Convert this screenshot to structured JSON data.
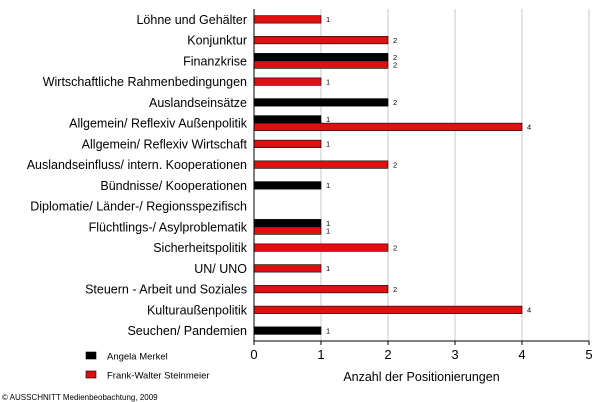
{
  "chart_data": {
    "type": "bar",
    "orientation": "horizontal",
    "categories": [
      "Löhne und Gehälter",
      "Konjunktur",
      "Finanzkrise",
      "Wirtschaftliche Rahmenbedingungen",
      "Auslandseinsätze",
      "Allgemein/ Reflexiv Außenpolitik",
      "Allgemein/ Reflexiv Wirtschaft",
      "Auslandseinfluss/ intern. Kooperationen",
      "Bündnisse/ Kooperationen",
      "Diplomatie/ Länder-/ Regionsspezifisch",
      "Flüchtlings-/ Asylproblematik",
      "Sicherheitspolitik",
      "UN/ UNO",
      "Steuern - Arbeit und Soziales",
      "Kulturaußenpolitik",
      "Seuchen/ Pandemien"
    ],
    "series": [
      {
        "name": "Angela Merkel",
        "color": "#000000",
        "values": [
          null,
          null,
          2,
          null,
          2,
          1,
          null,
          null,
          1,
          null,
          1,
          null,
          null,
          null,
          null,
          1
        ]
      },
      {
        "name": "Frank-Walter Steinmeier",
        "color": "#dd1111",
        "values": [
          1,
          2,
          2,
          1,
          null,
          4,
          1,
          2,
          null,
          null,
          1,
          2,
          1,
          2,
          4,
          null
        ]
      }
    ],
    "xlabel": "Anzahl der Positionierungen",
    "xlim": [
      0,
      5
    ],
    "xticks": [
      "0",
      "1",
      "2",
      "3",
      "4",
      "5"
    ],
    "grid": true,
    "legend": "bottom-left"
  },
  "footer": {
    "copyright": "© AUSSCHNITT Medienbeobachtung, 2009"
  }
}
